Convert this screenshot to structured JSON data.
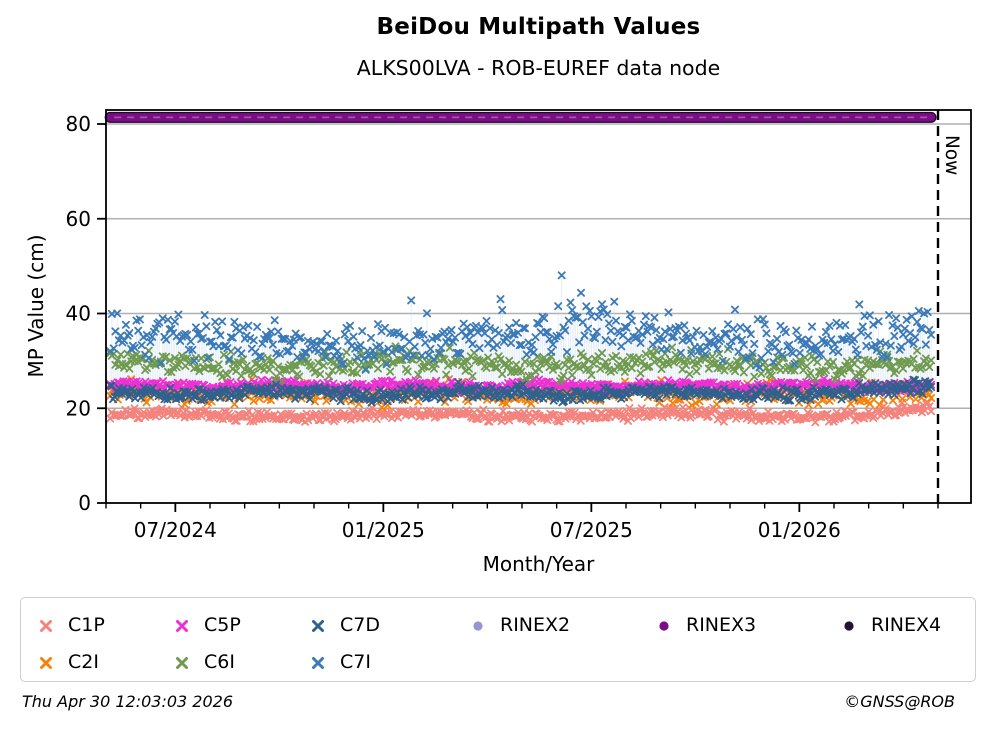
{
  "title": "BeiDou Multipath Values",
  "subtitle": "ALKS00LVA - ROB-EUREF data node",
  "footer": {
    "timestamp": "Thu Apr 30 12:03:03 2026",
    "credit": "©GNSS@ROB"
  },
  "chart_data": {
    "type": "scatter",
    "title": "BeiDou Multipath Values",
    "subtitle": "ALKS00LVA - ROB-EUREF data node",
    "xlabel": "Month/Year",
    "ylabel": "MP Value (cm)",
    "ylim": [
      0,
      83
    ],
    "y_ticks": [
      "0",
      "20",
      "40",
      "60",
      "80"
    ],
    "y_tick_values": [
      0,
      20,
      40,
      60,
      80
    ],
    "y_gridlines": [
      20,
      40,
      60,
      80
    ],
    "grid_color": "#B0B0B0",
    "x_ticks": [
      {
        "label": "07/2024",
        "month": 2
      },
      {
        "label": "01/2025",
        "month": 8
      },
      {
        "label": "07/2025",
        "month": 14
      },
      {
        "label": "01/2026",
        "month": 20
      }
    ],
    "x_minor_tick_every_months": 1,
    "x_range_months": [
      0,
      24.95
    ],
    "data_start_month": 0.12,
    "data_end_month": 23.8,
    "now_line": {
      "label": "Now",
      "month": 24,
      "style": "dashed-black"
    },
    "legend_rows": [
      [
        "C1P",
        "C5P",
        "C7D",
        "RINEX2",
        "RINEX3",
        "RINEX4"
      ],
      [
        "C2I",
        "C6I",
        "C7I"
      ]
    ],
    "series": [
      {
        "name": "C1P",
        "color": "#F4837D",
        "marker": "x",
        "band": [
          16.5,
          20.8
        ],
        "gen": {
          "n": 540,
          "base": 18.55,
          "sd": 0.55,
          "wave_amp": 0.45,
          "wave_freq": 0.85,
          "wave_phase": 0.3,
          "end_rise_start": 22,
          "end_rise_rate": 0.7,
          "min": 16.2,
          "max": 21.2,
          "spike_prob": 0.004,
          "spike_max": 1.5
        }
      },
      {
        "name": "C2I",
        "color": "#F5820B",
        "marker": "x",
        "band": [
          20,
          27
        ],
        "gen": {
          "n": 430,
          "base": 23.1,
          "sd": 1.1,
          "wave_amp": 0.35,
          "wave_freq": 1.3,
          "wave_phase": 1.1,
          "min": 19.9,
          "max": 27.4,
          "spike_prob": 0.012,
          "spike_max": 2.2
        }
      },
      {
        "name": "C5P",
        "color": "#EE2FD4",
        "marker": "x",
        "band": [
          23,
          26.5
        ],
        "gen": {
          "n": 560,
          "base": 24.75,
          "sd": 0.5,
          "wave_amp": 0.25,
          "wave_freq": 1.6,
          "wave_phase": 0.2,
          "min": 22.9,
          "max": 26.8,
          "spike_prob": 0.003,
          "spike_max": 7
        }
      },
      {
        "name": "C6I",
        "color": "#6F9A50",
        "marker": "x",
        "band": [
          26,
          34
        ],
        "gen": {
          "n": 470,
          "base": 29.4,
          "sd": 1.25,
          "wave_amp": 0.7,
          "wave_freq": 0.8,
          "wave_phase": 1.0,
          "min": 25.7,
          "max": 34.8,
          "spike_prob": 0.01,
          "spike_max": 2.5
        }
      },
      {
        "name": "C7D",
        "color": "#2F618F",
        "marker": "x",
        "band": [
          21,
          26.5
        ],
        "gen": {
          "n": 560,
          "base": 23.2,
          "sd": 0.7,
          "wave_amp": 0.4,
          "wave_freq": 1.1,
          "wave_phase": 2.2,
          "end_rise_start": 21.5,
          "end_rise_rate": 0.6,
          "min": 20.7,
          "max": 26.8,
          "spike_prob": 0,
          "spike_max": 0
        }
      },
      {
        "name": "C7I",
        "color": "#3B79B7",
        "marker": "x",
        "band": [
          28,
          50
        ],
        "stems": true,
        "stem_to": 24.3,
        "stem_color": "#C9DCEE",
        "gen": {
          "n": 470,
          "base": 34.2,
          "sd": 2.2,
          "wave_amp": 1.0,
          "wave_freq": 0.6,
          "wave_phase": 0.5,
          "bump_amp": 2.8,
          "bump_center": 15,
          "bump_width": 8,
          "end_rise_start": 22.5,
          "end_rise_rate": 1.6,
          "min": 27.6,
          "max": 53.5,
          "spike_prob": 0.07,
          "spike_max": 9
        }
      },
      {
        "name": "RINEX2",
        "color": "#9894D0",
        "marker": "dot",
        "plot": "none"
      },
      {
        "name": "RINEX3",
        "color": "#7B0D86",
        "marker": "dot",
        "plot": "band",
        "value": 81.4,
        "band_edge_color": "#1C0423",
        "band_dash_color": "#A85FB5"
      },
      {
        "name": "RINEX4",
        "color": "#241233",
        "marker": "dot",
        "plot": "none"
      }
    ]
  }
}
